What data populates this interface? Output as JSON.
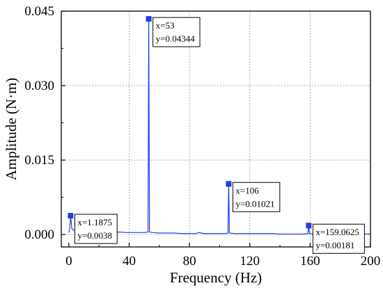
{
  "chart_data": {
    "type": "line",
    "title": "",
    "xlabel": "Frequency (Hz)",
    "ylabel": "Amplitude (N·m)",
    "xlim": [
      -5,
      200
    ],
    "ylim": [
      -0.0025,
      0.045
    ],
    "x_ticks": [
      0,
      40,
      80,
      120,
      160,
      200
    ],
    "x_tick_labels": [
      "0",
      "40",
      "80",
      "120",
      "160",
      "200"
    ],
    "y_ticks": [
      0.0,
      0.015,
      0.03,
      0.045
    ],
    "y_tick_labels": [
      "0.000",
      "0.015",
      "0.030",
      "0.045"
    ],
    "grid": true,
    "line_color": "#1f3fe0",
    "series": [
      {
        "x": [
          0,
          0.5,
          1.1875,
          2,
          3,
          5,
          8,
          12,
          16,
          20,
          25,
          30,
          34,
          38,
          42,
          46,
          50,
          52.5,
          53,
          53.5,
          56,
          60,
          65,
          70,
          75,
          80,
          84,
          86,
          90,
          95,
          100,
          104,
          105.5,
          106,
          106.5,
          110,
          115,
          120,
          125,
          130,
          135,
          140,
          145,
          150,
          155,
          158.5,
          159.0625,
          159.5,
          165,
          170,
          175,
          180,
          185,
          190,
          195,
          200
        ],
        "y": [
          0.0004,
          0.001,
          0.0038,
          0.0012,
          0.0009,
          0.0008,
          0.0007,
          0.0007,
          0.0006,
          0.0006,
          0.0005,
          0.0005,
          0.0005,
          0.0004,
          0.0004,
          0.0004,
          0.0004,
          0.0005,
          0.04344,
          0.0005,
          0.0004,
          0.0003,
          0.0003,
          0.0003,
          0.0002,
          0.0002,
          0.0002,
          0.0004,
          0.0002,
          0.0002,
          0.0002,
          0.0002,
          0.0003,
          0.01021,
          0.0003,
          0.0002,
          0.0002,
          0.0002,
          0.0002,
          0.0002,
          0.0002,
          0.0001,
          0.0001,
          0.0001,
          0.0001,
          0.0002,
          0.00181,
          0.0002,
          0.0001,
          0.0001,
          0.0001,
          0.0001,
          0.0001,
          0.0001,
          0.0001,
          0.0001
        ]
      }
    ],
    "peaks": [
      {
        "x": 1.1875,
        "y": 0.0038,
        "label_x": "x=1.1875",
        "label_y": "y=0.0038"
      },
      {
        "x": 53,
        "y": 0.04344,
        "label_x": "x=53",
        "label_y": "y=0.04344"
      },
      {
        "x": 106,
        "y": 0.01021,
        "label_x": "x=106",
        "label_y": "y=0.01021"
      },
      {
        "x": 159.0625,
        "y": 0.00181,
        "label_x": "x=159.0625",
        "label_y": "y=0.00181"
      }
    ]
  }
}
